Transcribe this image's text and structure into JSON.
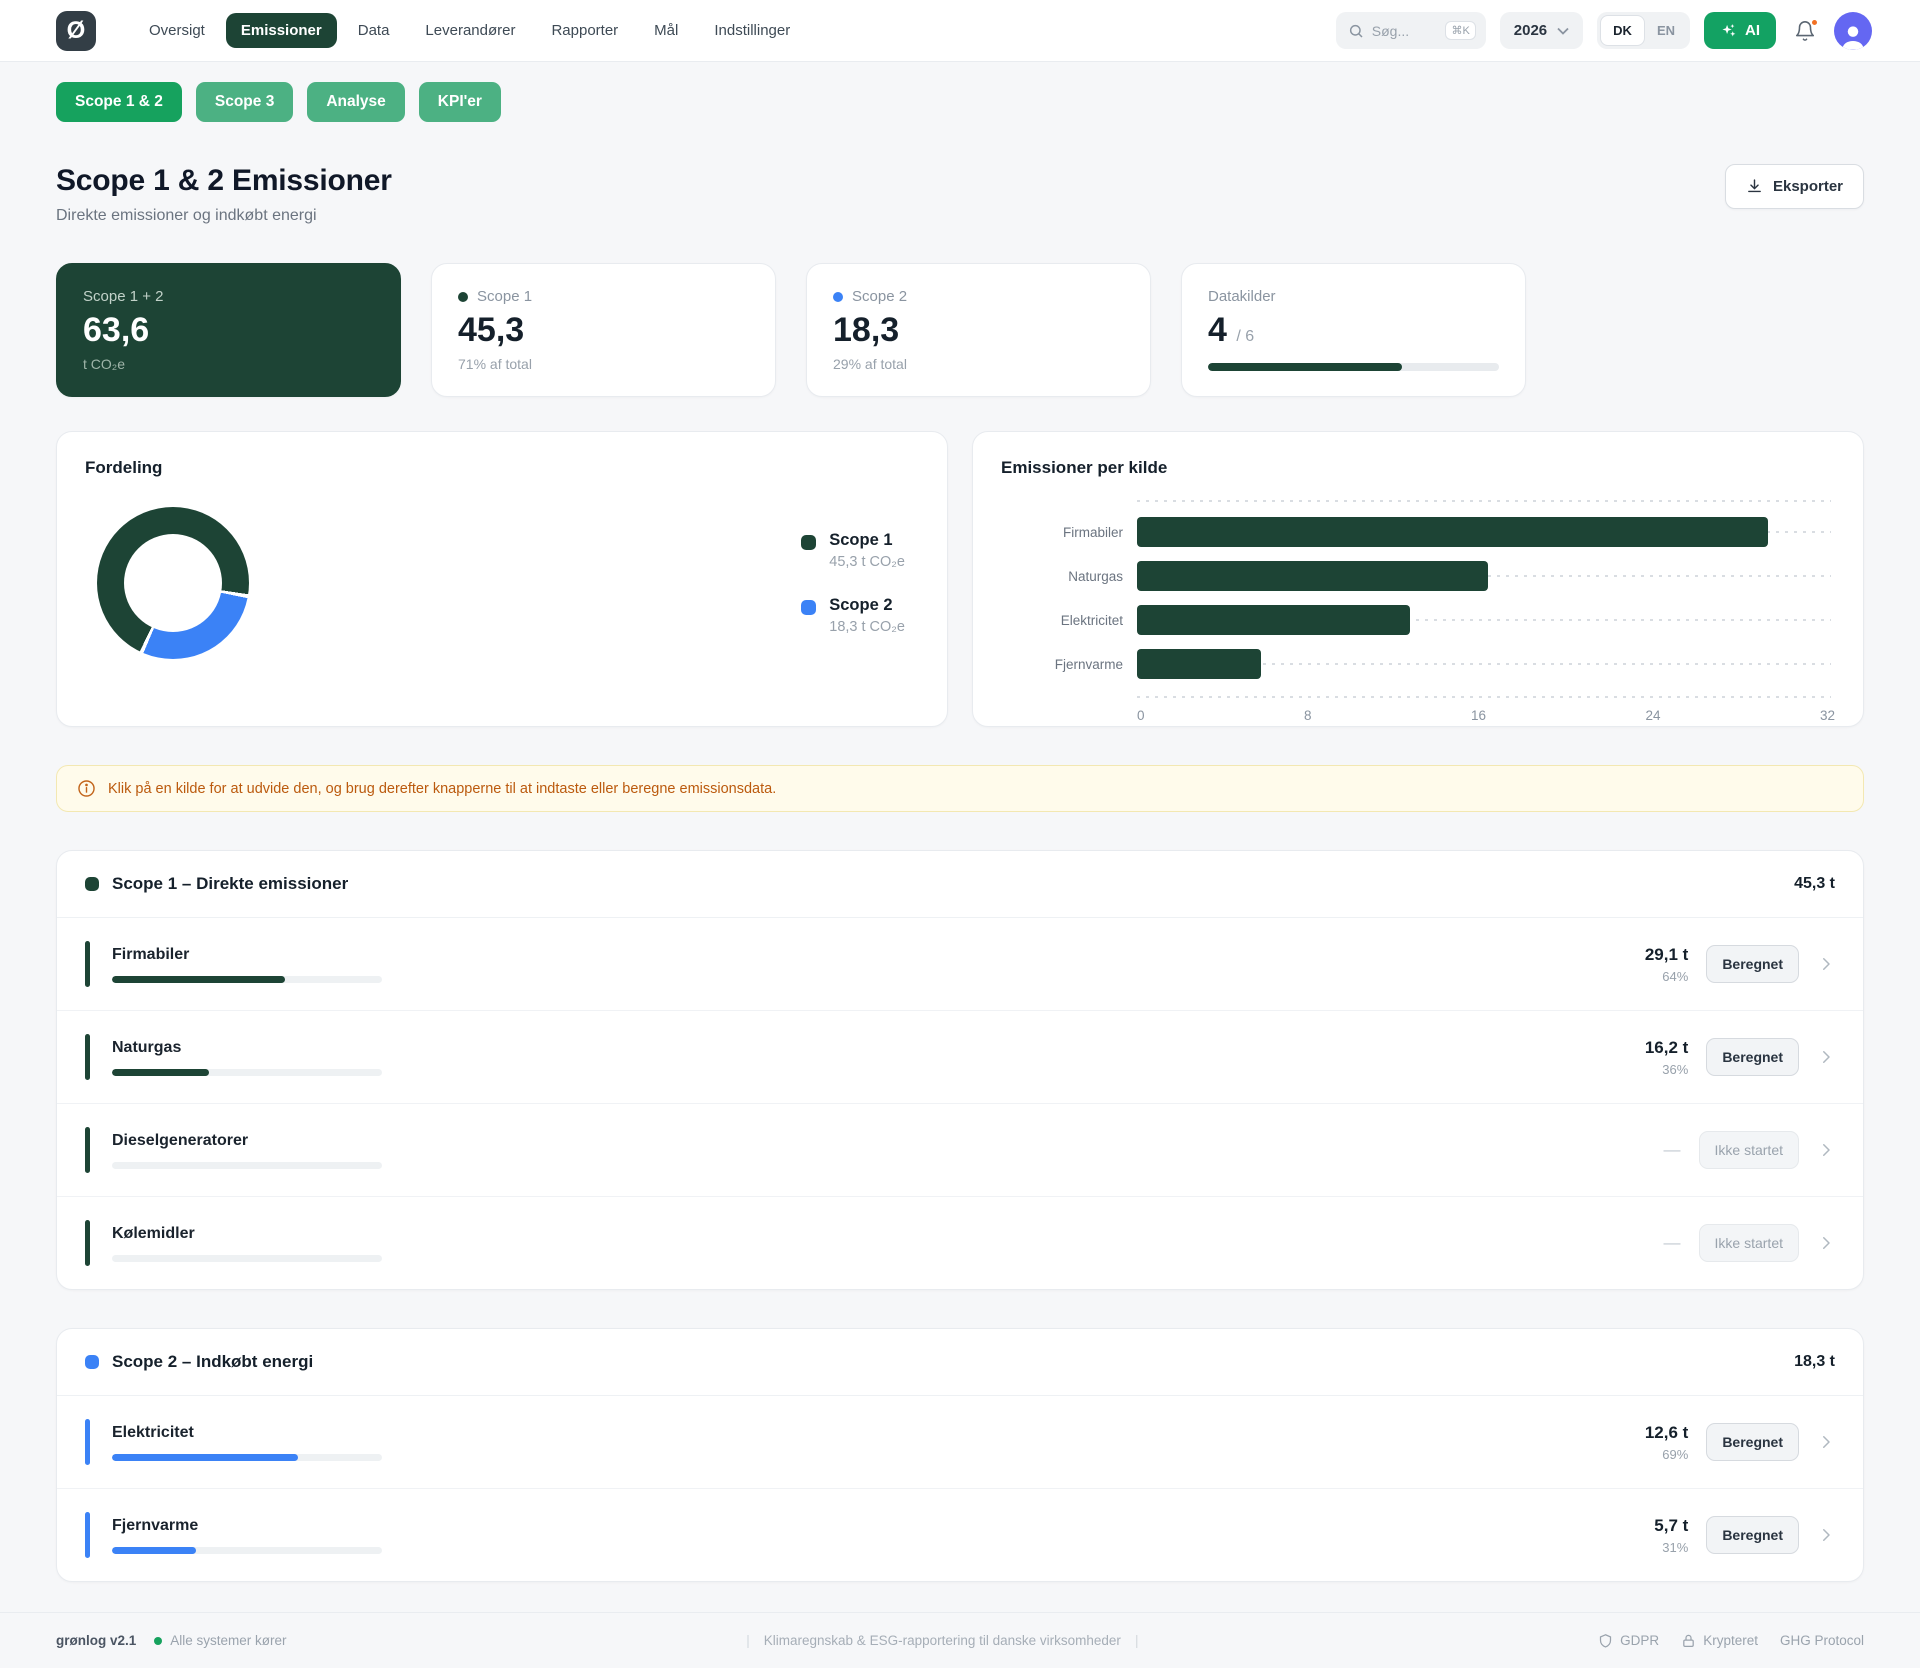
{
  "colors": {
    "green_dark": "#1d4435",
    "green": "#16a25e",
    "green_soft": "#4cb183",
    "blue": "#3b82f6",
    "alert_text": "#bb5a0e",
    "indigo_avatar": "#6467f2"
  },
  "brand": {
    "logo_glyph": "Ø"
  },
  "header": {
    "nav": [
      {
        "label": "Oversigt"
      },
      {
        "label": "Emissioner"
      },
      {
        "label": "Data"
      },
      {
        "label": "Leverandører"
      },
      {
        "label": "Rapporter"
      },
      {
        "label": "Mål"
      },
      {
        "label": "Indstillinger"
      }
    ],
    "search": {
      "placeholder": "Søg...",
      "kbd": "⌘K"
    },
    "year": "2026",
    "lang": {
      "dk": "DK",
      "en": "EN"
    },
    "ai_label": "AI"
  },
  "subnav": {
    "tabs": [
      {
        "label": "Scope 1 & 2"
      },
      {
        "label": "Scope 3"
      },
      {
        "label": "Analyse"
      },
      {
        "label": "KPI'er"
      }
    ]
  },
  "page": {
    "title": "Scope 1 & 2 Emissioner",
    "subtitle": "Direkte emissioner og indkøbt energi",
    "export_label": "Eksporter"
  },
  "stats": {
    "total": {
      "label": "Scope 1 + 2",
      "value": "63,6",
      "unit": "t CO₂e"
    },
    "scope1": {
      "label": "Scope 1",
      "value": "45,3",
      "sub": "71% af total"
    },
    "scope2": {
      "label": "Scope 2",
      "value": "18,3",
      "sub": "29% af total"
    },
    "datasources": {
      "label": "Datakilder",
      "value": "4",
      "total": "/ 6",
      "progress_pct": 66.7
    }
  },
  "chart_data": [
    {
      "type": "pie",
      "title": "Fordeling",
      "labels": [
        "Scope 1",
        "Scope 2"
      ],
      "values": [
        71,
        29
      ],
      "colors": [
        "#1d4435",
        "#3b82f6"
      ],
      "legend": [
        {
          "name": "Scope 1",
          "value": "45,3 t CO₂e"
        },
        {
          "name": "Scope 2",
          "value": "18,3 t CO₂e"
        }
      ],
      "legend_position": "right",
      "draw": {
        "values": [
          29,
          71
        ],
        "colors": [
          "#3b82f6",
          "#1d4435"
        ],
        "rotate_deg": 100,
        "gap_deg": 3
      }
    },
    {
      "type": "bar",
      "title": "Emissioner per kilde",
      "orientation": "horizontal",
      "categories": [
        "Firmabiler",
        "Naturgas",
        "Elektricitet",
        "Fjernvarme"
      ],
      "values": [
        29.1,
        16.2,
        12.6,
        5.7
      ],
      "xlim": [
        0,
        32
      ],
      "ticks": [
        "0",
        "8",
        "16",
        "24",
        "32"
      ],
      "bar_color": "#1d4435",
      "grid": "dashed-horizontal"
    }
  ],
  "alert": {
    "text": "Klik på en kilde for at udvide den, og brug derefter knapperne til at indtaste eller beregne emissionsdata."
  },
  "scope1_section": {
    "title": "Scope 1 – Direkte emissioner",
    "total": "45,3 t",
    "rows": [
      {
        "name": "Firmabiler",
        "value": "29,1 t",
        "pct": "64%",
        "progress": 64,
        "status": "Beregnet"
      },
      {
        "name": "Naturgas",
        "value": "16,2 t",
        "pct": "36%",
        "progress": 36,
        "status": "Beregnet"
      },
      {
        "name": "Dieselgeneratorer",
        "value": "—",
        "progress": 0,
        "status": "Ikke startet"
      },
      {
        "name": "Kølemidler",
        "value": "—",
        "progress": 0,
        "status": "Ikke startet"
      }
    ]
  },
  "scope2_section": {
    "title": "Scope 2 – Indkøbt energi",
    "total": "18,3 t",
    "rows": [
      {
        "name": "Elektricitet",
        "value": "12,6 t",
        "pct": "69%",
        "progress": 69,
        "status": "Beregnet"
      },
      {
        "name": "Fjernvarme",
        "value": "5,7 t",
        "pct": "31%",
        "progress": 31,
        "status": "Beregnet"
      }
    ]
  },
  "footer": {
    "version": "grønlog v2.1",
    "status": "Alle systemer kører",
    "tagline": "Klimaregnskab & ESG-rapportering til danske virksomheder",
    "badges": {
      "gdpr": "GDPR",
      "encrypted": "Krypteret",
      "ghg": "GHG Protocol"
    }
  }
}
